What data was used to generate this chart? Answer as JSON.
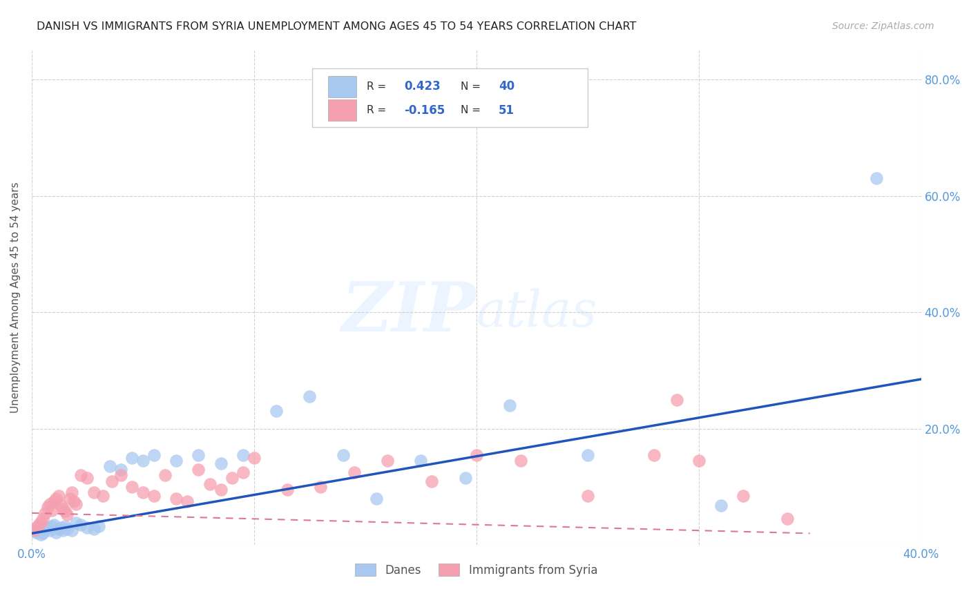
{
  "title": "DANISH VS IMMIGRANTS FROM SYRIA UNEMPLOYMENT AMONG AGES 45 TO 54 YEARS CORRELATION CHART",
  "source": "Source: ZipAtlas.com",
  "ylabel": "Unemployment Among Ages 45 to 54 years",
  "xlim": [
    0.0,
    0.4
  ],
  "ylim": [
    0.0,
    0.85
  ],
  "xticks": [
    0.0,
    0.1,
    0.2,
    0.3,
    0.4
  ],
  "yticks": [
    0.0,
    0.2,
    0.4,
    0.6,
    0.8
  ],
  "right_ytick_labels": [
    "",
    "20.0%",
    "40.0%",
    "60.0%",
    "80.0%"
  ],
  "bottom_xtick_labels": [
    "0.0%",
    "",
    "",
    "",
    "40.0%"
  ],
  "background_color": "#ffffff",
  "grid_color": "#cccccc",
  "danes_color": "#a8c8f0",
  "syria_color": "#f5a0b0",
  "danes_line_color": "#2255bb",
  "syria_line_color": "#dd7799",
  "danes_R": "0.423",
  "danes_N": "40",
  "syria_R": "-0.165",
  "syria_N": "51",
  "danes_scatter_x": [
    0.002,
    0.003,
    0.004,
    0.005,
    0.006,
    0.007,
    0.008,
    0.009,
    0.01,
    0.011,
    0.012,
    0.013,
    0.014,
    0.015,
    0.016,
    0.018,
    0.02,
    0.022,
    0.025,
    0.028,
    0.03,
    0.035,
    0.04,
    0.045,
    0.05,
    0.055,
    0.065,
    0.075,
    0.085,
    0.095,
    0.11,
    0.125,
    0.14,
    0.155,
    0.175,
    0.195,
    0.215,
    0.25,
    0.31,
    0.38
  ],
  "danes_scatter_y": [
    0.022,
    0.025,
    0.018,
    0.02,
    0.028,
    0.03,
    0.025,
    0.032,
    0.035,
    0.022,
    0.028,
    0.03,
    0.025,
    0.032,
    0.028,
    0.025,
    0.038,
    0.035,
    0.03,
    0.028,
    0.032,
    0.135,
    0.13,
    0.15,
    0.145,
    0.155,
    0.145,
    0.155,
    0.14,
    0.155,
    0.23,
    0.255,
    0.155,
    0.08,
    0.145,
    0.115,
    0.24,
    0.155,
    0.068,
    0.63
  ],
  "syria_scatter_x": [
    0.001,
    0.002,
    0.003,
    0.004,
    0.005,
    0.006,
    0.007,
    0.008,
    0.009,
    0.01,
    0.011,
    0.012,
    0.013,
    0.014,
    0.015,
    0.016,
    0.017,
    0.018,
    0.019,
    0.02,
    0.022,
    0.025,
    0.028,
    0.032,
    0.036,
    0.04,
    0.045,
    0.05,
    0.055,
    0.06,
    0.065,
    0.07,
    0.075,
    0.08,
    0.085,
    0.09,
    0.095,
    0.1,
    0.115,
    0.13,
    0.145,
    0.16,
    0.18,
    0.2,
    0.22,
    0.25,
    0.28,
    0.29,
    0.3,
    0.32,
    0.34
  ],
  "syria_scatter_y": [
    0.025,
    0.03,
    0.035,
    0.04,
    0.045,
    0.055,
    0.065,
    0.07,
    0.06,
    0.075,
    0.08,
    0.085,
    0.068,
    0.062,
    0.058,
    0.052,
    0.08,
    0.09,
    0.075,
    0.07,
    0.12,
    0.115,
    0.09,
    0.085,
    0.11,
    0.12,
    0.1,
    0.09,
    0.085,
    0.12,
    0.08,
    0.075,
    0.13,
    0.105,
    0.095,
    0.115,
    0.125,
    0.15,
    0.095,
    0.1,
    0.125,
    0.145,
    0.11,
    0.155,
    0.145,
    0.085,
    0.155,
    0.25,
    0.145,
    0.085,
    0.045
  ],
  "watermark_zip": "ZIP",
  "watermark_atlas": "atlas",
  "legend_label_danes": "Danes",
  "legend_label_syria": "Immigrants from Syria"
}
